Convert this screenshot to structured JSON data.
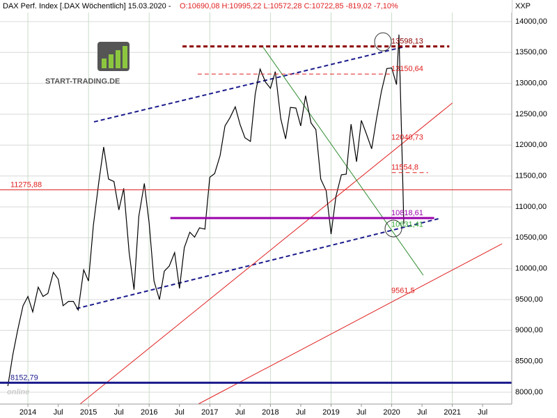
{
  "chart_data": {
    "type": "line",
    "title": "DAX Perf. Index [.DAX  Wöchentlich] 15.03.2020 -",
    "quote": "O:10690,08 H:10995,22 L:10572,28 C:10722,85 -819,02 -7,10%",
    "currency": "XXP",
    "logo": "START-TRADING.DE",
    "watermark": "online",
    "color": "#000000",
    "grid": true,
    "xlim": [
      2013.54,
      2021.98
    ],
    "ylim": [
      7808,
      14259
    ],
    "xticks": [
      2014,
      {
        "value": 2014.5,
        "label": "Jul"
      },
      2015,
      {
        "value": 2015.5,
        "label": "Jul"
      },
      2016,
      {
        "value": 2016.5,
        "label": "Jul"
      },
      2017,
      {
        "value": 2017.5,
        "label": "Jul"
      },
      2018,
      {
        "value": 2018.5,
        "label": "Jul"
      },
      2019,
      {
        "value": 2019.5,
        "label": "Jul"
      },
      2020,
      {
        "value": 2020.5,
        "label": "Jul"
      },
      2021,
      {
        "value": 2021.5,
        "label": "Jul"
      }
    ],
    "yticks": [
      {
        "value": 8000,
        "label": "8000,00"
      },
      {
        "value": 8500,
        "label": "8500,00"
      },
      {
        "value": 9000,
        "label": "9000,00"
      },
      {
        "value": 9500,
        "label": "9500,00"
      },
      {
        "value": 10000,
        "label": "10000,00"
      },
      {
        "value": 10500,
        "label": "10500,00"
      },
      {
        "value": 11000,
        "label": "11000,00"
      },
      {
        "value": 11500,
        "label": "11500,00"
      },
      {
        "value": 12000,
        "label": "12000,00"
      },
      {
        "value": 12500,
        "label": "12500,00"
      },
      {
        "value": 13000,
        "label": "13000,00"
      },
      {
        "value": 13500,
        "label": "13500,00"
      },
      {
        "value": 14000,
        "label": "14000,00"
      }
    ],
    "series": [
      {
        "x": [
          2013.67,
          2013.75,
          2013.83,
          2013.92,
          2014.0,
          2014.08,
          2014.17,
          2014.25,
          2014.33,
          2014.42,
          2014.5,
          2014.58,
          2014.67,
          2014.75,
          2014.83,
          2014.92,
          2015.0,
          2015.08,
          2015.17,
          2015.25,
          2015.33,
          2015.42,
          2015.5,
          2015.58,
          2015.67,
          2015.75,
          2015.83,
          2015.92,
          2016.0,
          2016.08,
          2016.17,
          2016.25,
          2016.33,
          2016.42,
          2016.5,
          2016.58,
          2016.67,
          2016.75,
          2016.83,
          2016.92,
          2017.0,
          2017.08,
          2017.17,
          2017.25,
          2017.33,
          2017.42,
          2017.5,
          2017.58,
          2017.67,
          2017.75,
          2017.83,
          2017.92,
          2018.0,
          2018.08,
          2018.17,
          2018.25,
          2018.33,
          2018.42,
          2018.5,
          2018.58,
          2018.67,
          2018.75,
          2018.83,
          2018.92,
          2019.0,
          2019.08,
          2019.17,
          2019.25,
          2019.33,
          2019.42,
          2019.5,
          2019.58,
          2019.67,
          2019.75,
          2019.83,
          2019.92,
          2020.0,
          2020.08,
          2020.12,
          2020.17,
          2020.2
        ],
        "values": [
          8100,
          8600,
          9000,
          9400,
          9550,
          9300,
          9700,
          9550,
          9600,
          9940,
          9830,
          9400,
          9470,
          9470,
          9330,
          9980,
          9800,
          10700,
          11400,
          11970,
          11450,
          11410,
          10950,
          11300,
          10260,
          9660,
          10850,
          11380,
          10740,
          9800,
          9500,
          9960,
          10040,
          10260,
          9680,
          10340,
          10590,
          10510,
          10660,
          10640,
          11480,
          11540,
          11830,
          12310,
          12440,
          12620,
          12330,
          12120,
          12060,
          12830,
          13230,
          13020,
          12920,
          13190,
          12430,
          12100,
          12610,
          12600,
          12310,
          12800,
          12360,
          12250,
          11450,
          11260,
          10560,
          11170,
          11520,
          11530,
          12340,
          11730,
          12400,
          12190,
          11940,
          12430,
          12870,
          13240,
          13250,
          12980,
          13790,
          11890,
          10723
        ]
      }
    ],
    "levels": [
      {
        "value": 13598.13,
        "label": "13598,13",
        "color": "#8b0000",
        "from": 2016.55,
        "to": 2020.95,
        "dash": true,
        "width": 3
      },
      {
        "value": 13150.64,
        "label": "13150,64",
        "color": "#e02020",
        "from": 2016.8,
        "to": 2020.0,
        "dash": true,
        "width": 1
      },
      {
        "value": 12040.73,
        "label": "12040,73",
        "color": "#e02020"
      },
      {
        "value": 11554.8,
        "label": "11554,8",
        "color": "#e02020",
        "from": 2020.0,
        "to": 2020.6,
        "dash": true,
        "width": 1
      },
      {
        "value": 11275.88,
        "label": "11275,88",
        "color": "#e02020",
        "full": true,
        "width": 1
      },
      {
        "value": 10818.61,
        "label": "10818,61",
        "color": "#9900aa",
        "from": 2016.35,
        "to": 2020.7,
        "width": 3
      },
      {
        "value": 10631.41,
        "label": "10631,41",
        "color": "#33aa33"
      },
      {
        "value": 9561.5,
        "label": "9561,5",
        "color": "#e02020"
      },
      {
        "value": 8152.79,
        "label": "8152,79",
        "color": "#1a1a8c",
        "full": true,
        "width": 3
      }
    ],
    "trendlines": [
      {
        "x": [
          2015.09,
          2020.26
        ],
        "y": [
          12376,
          13605
        ],
        "color": "#1a1a8c",
        "dash": true,
        "width": 2
      },
      {
        "x": [
          2014.8,
          2020.77
        ],
        "y": [
          9354,
          10808
        ],
        "color": "#1a1a8c",
        "dash": true,
        "width": 2
      },
      {
        "x": [
          2014.86,
          2021.0
        ],
        "y": [
          7808,
          12681
        ],
        "color": "#e02020",
        "width": 1
      },
      {
        "x": [
          2016.81,
          2021.82
        ],
        "y": [
          7808,
          10402
        ],
        "color": "#e02020",
        "width": 1
      },
      {
        "x": [
          2017.88,
          2020.52
        ],
        "y": [
          13583,
          9895
        ],
        "color": "#2e8b2e",
        "width": 1
      }
    ]
  }
}
